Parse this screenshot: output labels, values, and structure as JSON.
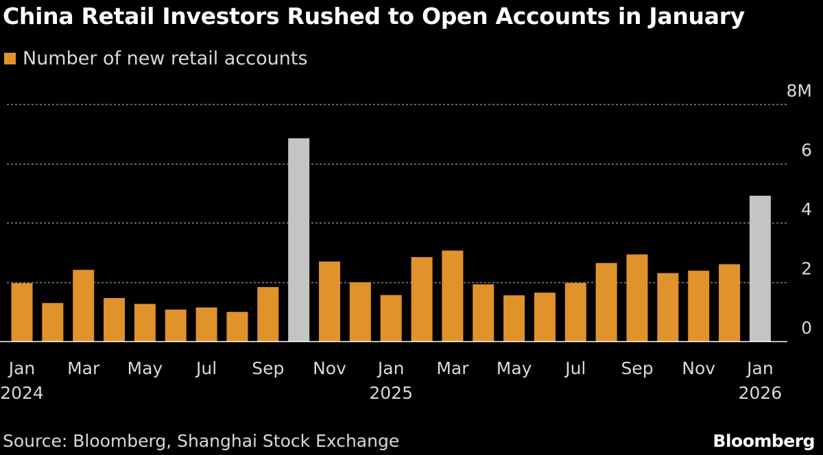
{
  "colors": {
    "background": "#000000",
    "bar": "#e0922b",
    "bar_highlight": "#c4c4c4",
    "gridline": "#8a8a8a",
    "text": "#d9d9d9"
  },
  "chart_data": {
    "type": "bar",
    "title": "China Retail Investors Rushed to Open Accounts in January",
    "legend": [
      "Number of new retail accounts"
    ],
    "legend_position": "top-left",
    "source": "Source: Bloomberg, Shanghai Stock Exchange",
    "brand": "Bloomberg",
    "categories": [
      "Jan 2024",
      "Feb 2024",
      "Mar 2024",
      "Apr 2024",
      "May 2024",
      "Jun 2024",
      "Jul 2024",
      "Aug 2024",
      "Sep 2024",
      "Oct 2024",
      "Nov 2024",
      "Dec 2024",
      "Jan 2025",
      "Feb 2025",
      "Mar 2025",
      "Apr 2025",
      "May 2025",
      "Jun 2025",
      "Jul 2025",
      "Aug 2025",
      "Sep 2025",
      "Oct 2025",
      "Nov 2025",
      "Dec 2025",
      "Jan 2026"
    ],
    "values": [
      1.96,
      1.29,
      2.41,
      1.46,
      1.26,
      1.07,
      1.14,
      0.99,
      1.83,
      6.85,
      2.69,
      1.99,
      1.56,
      2.84,
      3.06,
      1.92,
      1.55,
      1.64,
      1.97,
      2.64,
      2.93,
      2.3,
      2.38,
      2.6,
      4.91
    ],
    "highlight": [
      false,
      false,
      false,
      false,
      false,
      false,
      false,
      false,
      false,
      true,
      false,
      false,
      false,
      false,
      false,
      false,
      false,
      false,
      false,
      false,
      false,
      false,
      false,
      false,
      true
    ],
    "ylim": [
      0,
      8
    ],
    "yticks": [
      0,
      2,
      4,
      6,
      8
    ],
    "ytick_labels": [
      "0",
      "2",
      "4",
      "6",
      "8M"
    ],
    "y_axis_side": "right",
    "grid": true,
    "xtick_labels": [
      {
        "index": 0,
        "month": "Jan",
        "year": "2024"
      },
      {
        "index": 2,
        "month": "Mar",
        "year": ""
      },
      {
        "index": 4,
        "month": "May",
        "year": ""
      },
      {
        "index": 6,
        "month": "Jul",
        "year": ""
      },
      {
        "index": 8,
        "month": "Sep",
        "year": ""
      },
      {
        "index": 10,
        "month": "Nov",
        "year": ""
      },
      {
        "index": 12,
        "month": "Jan",
        "year": "2025"
      },
      {
        "index": 14,
        "month": "Mar",
        "year": ""
      },
      {
        "index": 16,
        "month": "May",
        "year": ""
      },
      {
        "index": 18,
        "month": "Jul",
        "year": ""
      },
      {
        "index": 20,
        "month": "Sep",
        "year": ""
      },
      {
        "index": 22,
        "month": "Nov",
        "year": ""
      },
      {
        "index": 24,
        "month": "Jan",
        "year": "2026"
      }
    ],
    "xlabel": "",
    "ylabel": ""
  }
}
